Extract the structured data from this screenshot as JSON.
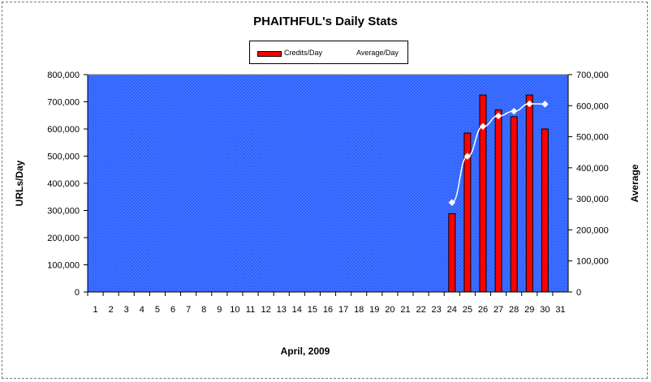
{
  "chart_data": {
    "type": "bar",
    "title": "PHAITHFUL's Daily Stats",
    "xlabel": "April, 2009",
    "ylabel": "URLs/Day",
    "y2label": "Average",
    "categories": [
      "1",
      "2",
      "3",
      "4",
      "5",
      "6",
      "7",
      "8",
      "9",
      "10",
      "11",
      "12",
      "13",
      "14",
      "15",
      "16",
      "17",
      "18",
      "19",
      "20",
      "21",
      "22",
      "23",
      "24",
      "25",
      "26",
      "27",
      "28",
      "29",
      "30",
      "31"
    ],
    "ylim": [
      0,
      800000
    ],
    "y2lim": [
      0,
      700000
    ],
    "yticks": [
      "0",
      "100,000",
      "200,000",
      "300,000",
      "400,000",
      "500,000",
      "600,000",
      "700,000",
      "800,000"
    ],
    "y2ticks": [
      "0",
      "100,000",
      "200,000",
      "300,000",
      "400,000",
      "500,000",
      "600,000",
      "700,000"
    ],
    "legend_position": "top-center",
    "grid": false,
    "plot_background": "#3366ff",
    "series": [
      {
        "name": "Credits/Day",
        "type": "bar",
        "color": "#ff0000",
        "axis": "left",
        "values": [
          null,
          null,
          null,
          null,
          null,
          null,
          null,
          null,
          null,
          null,
          null,
          null,
          null,
          null,
          null,
          null,
          null,
          null,
          null,
          null,
          null,
          null,
          null,
          288000,
          585000,
          725000,
          670000,
          645000,
          725000,
          600000,
          null
        ]
      },
      {
        "name": "Average/Day",
        "type": "line",
        "color": "#ffffff",
        "axis": "right",
        "values": [
          null,
          null,
          null,
          null,
          null,
          null,
          null,
          null,
          null,
          null,
          null,
          null,
          null,
          null,
          null,
          null,
          null,
          null,
          null,
          null,
          null,
          null,
          null,
          288000,
          437000,
          533000,
          567000,
          582000,
          606000,
          605000,
          null
        ]
      }
    ]
  }
}
